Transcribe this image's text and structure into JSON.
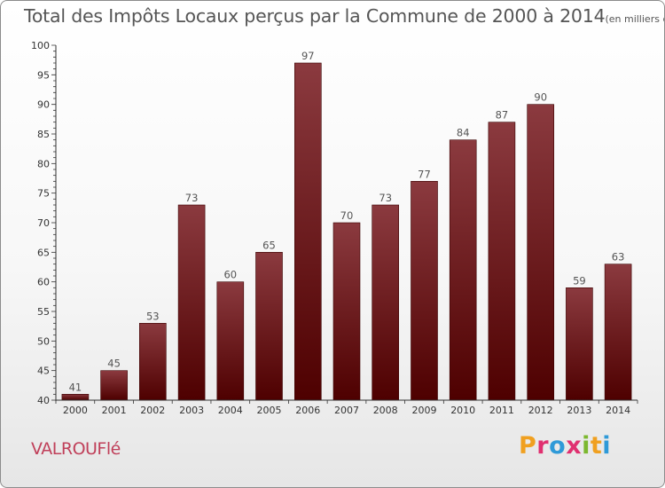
{
  "chart_data": {
    "type": "bar",
    "title": "Total des Impôts Locaux perçus par la Commune de 2000 à 2014",
    "unit_label": "(en milliers d'€)",
    "categories": [
      "2000",
      "2001",
      "2002",
      "2003",
      "2004",
      "2005",
      "2006",
      "2007",
      "2008",
      "2009",
      "2010",
      "2011",
      "2012",
      "2013",
      "2014"
    ],
    "values": [
      41,
      45,
      53,
      73,
      60,
      65,
      97,
      70,
      73,
      77,
      84,
      87,
      90,
      59,
      63
    ],
    "ylim": [
      40,
      100
    ],
    "yticks": [
      40,
      45,
      50,
      55,
      60,
      65,
      70,
      75,
      80,
      85,
      90,
      95,
      100
    ],
    "xlabel": "",
    "ylabel": "",
    "grid": false,
    "bar_color_top": "#8b3a3f",
    "bar_color_bottom": "#4e0000"
  },
  "commune": "VALROUFlé",
  "brand": {
    "letters": [
      "P",
      "r",
      "o",
      "x",
      "i",
      "t",
      "i"
    ],
    "colors": [
      "#f0a020",
      "#e03070",
      "#2f9ad8",
      "#e03070",
      "#7cb82f",
      "#f0a020",
      "#2f9ad8"
    ]
  }
}
